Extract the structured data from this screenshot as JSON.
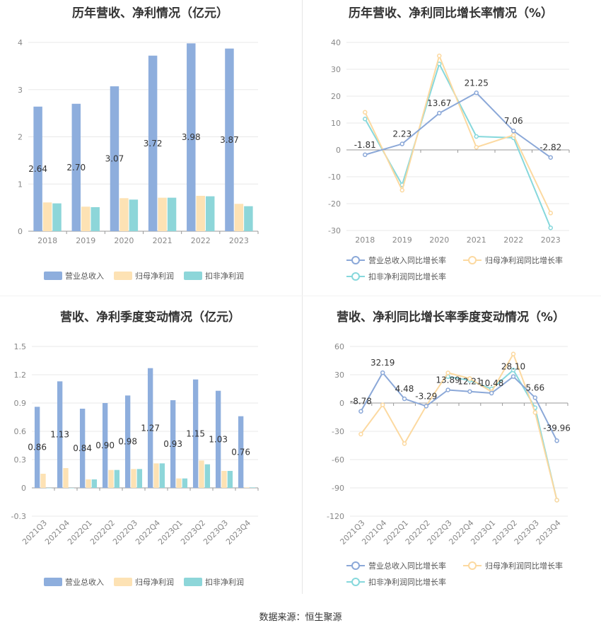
{
  "source_label": "数据来源：恒生聚源",
  "colors": {
    "revenue": "#8eaedd",
    "net_profit": "#fde2b4",
    "deducted_profit": "#8dd6d9",
    "revenue_line": "#8ba8d8",
    "net_line": "#fcd9a0",
    "deducted_line": "#86d8dc",
    "grid": "#e8e8e8",
    "axis_text": "#888888",
    "label_text": "#333333"
  },
  "chart_data": [
    {
      "id": "annual-bar",
      "type": "bar",
      "title": "历年营收、净利情况（亿元）",
      "categories": [
        "2018",
        "2019",
        "2020",
        "2021",
        "2022",
        "2023"
      ],
      "ylim": [
        0,
        4
      ],
      "yticks": [
        0,
        1,
        2,
        3,
        4
      ],
      "grid": true,
      "legend_position": "bottom",
      "series": [
        {
          "name": "营业总收入",
          "values": [
            2.64,
            2.7,
            3.07,
            3.72,
            3.98,
            3.87
          ],
          "labels": [
            "2.64",
            "2.70",
            "3.07",
            "3.72",
            "3.98",
            "3.87"
          ]
        },
        {
          "name": "归母净利润",
          "values": [
            0.61,
            0.52,
            0.7,
            0.71,
            0.75,
            0.58
          ]
        },
        {
          "name": "扣非净利润",
          "values": [
            0.59,
            0.51,
            0.67,
            0.71,
            0.74,
            0.53
          ]
        }
      ]
    },
    {
      "id": "annual-line",
      "type": "line",
      "title": "历年营收、净利同比增长率情况（%）",
      "categories": [
        "2018",
        "2019",
        "2020",
        "2021",
        "2022",
        "2023"
      ],
      "ylim": [
        -30,
        40
      ],
      "yticks": [
        -30,
        -20,
        -10,
        0,
        10,
        20,
        30,
        40
      ],
      "grid": true,
      "legend_position": "bottom",
      "series": [
        {
          "name": "营业总收入同比增长率",
          "values": [
            -1.81,
            2.23,
            13.67,
            21.25,
            7.06,
            -2.82
          ],
          "labels": [
            "-1.81",
            "2.23",
            "13.67",
            "21.25",
            "7.06",
            "-2.82"
          ]
        },
        {
          "name": "归母净利润同比增长率",
          "values": [
            14.0,
            -15.0,
            35.0,
            1.0,
            5.5,
            -23.5
          ]
        },
        {
          "name": "扣非净利润同比增长率",
          "values": [
            11.5,
            -13.0,
            32.0,
            5.0,
            4.5,
            -29.0
          ]
        }
      ]
    },
    {
      "id": "quarterly-bar",
      "type": "bar",
      "title": "营收、净利季度变动情况（亿元）",
      "categories": [
        "2021Q3",
        "2021Q4",
        "2022Q1",
        "2022Q2",
        "2022Q3",
        "2022Q4",
        "2023Q1",
        "2023Q2",
        "2023Q3",
        "2023Q4"
      ],
      "ylim": [
        -0.3,
        1.5
      ],
      "yticks": [
        -0.3,
        0,
        0.3,
        0.6,
        0.9,
        1.2,
        1.5
      ],
      "grid": true,
      "legend_position": "bottom",
      "series": [
        {
          "name": "营业总收入",
          "values": [
            0.86,
            1.13,
            0.84,
            0.9,
            0.98,
            1.27,
            0.93,
            1.15,
            1.03,
            0.76
          ],
          "labels": [
            "0.86",
            "1.13",
            "0.84",
            "0.90",
            "0.98",
            "1.27",
            "0.93",
            "1.15",
            "1.03",
            "0.76"
          ]
        },
        {
          "name": "归母净利润",
          "values": [
            0.15,
            0.21,
            0.09,
            0.19,
            0.2,
            0.26,
            0.1,
            0.29,
            0.18,
            0.005
          ]
        },
        {
          "name": "扣非净利润",
          "values": [
            0.0,
            0.0,
            0.09,
            0.19,
            0.2,
            0.26,
            0.1,
            0.25,
            0.18,
            0.005
          ]
        }
      ]
    },
    {
      "id": "quarterly-line",
      "type": "line",
      "title": "营收、净利同比增长率季度变动情况（%）",
      "categories": [
        "2021Q3",
        "2021Q4",
        "2022Q1",
        "2022Q2",
        "2022Q3",
        "2022Q4",
        "2023Q1",
        "2023Q2",
        "2023Q3",
        "2023Q4"
      ],
      "ylim": [
        -120,
        60
      ],
      "yticks": [
        -120,
        -90,
        -60,
        -30,
        0,
        30,
        60
      ],
      "grid": true,
      "legend_position": "bottom",
      "series": [
        {
          "name": "营业总收入同比增长率",
          "values": [
            -8.78,
            32.19,
            4.48,
            -3.29,
            13.89,
            12.21,
            10.48,
            28.1,
            5.66,
            -39.96
          ],
          "labels": [
            "-8.78",
            "32.19",
            "4.48",
            "-3.29",
            "13.89",
            "12.21",
            "10.48",
            "28.10",
            "5.66",
            "-39.96"
          ]
        },
        {
          "name": "归母净利润同比增长率",
          "values": [
            -33,
            -2,
            -43,
            -3,
            32,
            26,
            12,
            52,
            -10,
            -103
          ]
        },
        {
          "name": "扣非净利润同比增长率",
          "values": [
            null,
            null,
            null,
            null,
            28,
            24,
            15,
            35,
            -5,
            -103
          ]
        }
      ]
    }
  ]
}
